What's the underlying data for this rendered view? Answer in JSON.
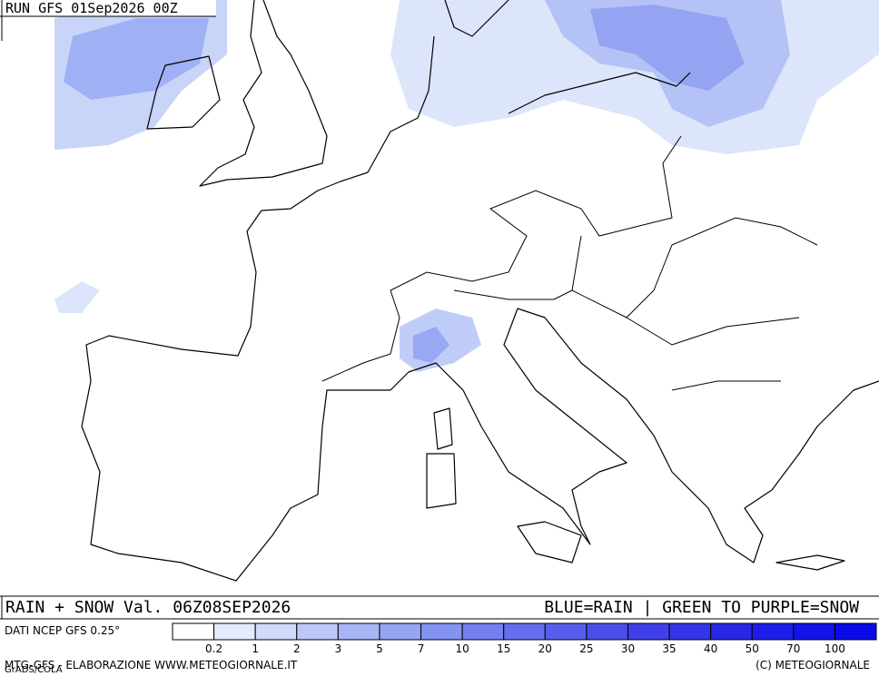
{
  "header": {
    "run": "RUN GFS 01Sep2026 00Z"
  },
  "footer": {
    "title": "RAIN + SNOW Val. 06Z08SEP2026",
    "legend_note": "BLUE=RAIN | GREEN TO PURPLE=SNOW",
    "source": "DATI NCEP GFS 0.25°",
    "credit_left": "MTG-GFS - ELABORAZIONE WWW.METEOGIORNALE.IT",
    "credit_right": "(C) METEOGIORNALE",
    "grads": "GrADS/COLA"
  },
  "colorbar": {
    "colors": [
      "#ffffff",
      "#e4ebfc",
      "#d0dafa",
      "#bcc8f8",
      "#a8b6f6",
      "#96a4f4",
      "#8492f2",
      "#7480f0",
      "#646eee",
      "#585eec",
      "#4c4eea",
      "#4040e8",
      "#3434e8",
      "#2828e6",
      "#1e1ee8",
      "#1414e8",
      "#0a0ae8"
    ],
    "labels": [
      "0.2",
      "1",
      "2",
      "3",
      "5",
      "7",
      "10",
      "15",
      "20",
      "25",
      "30",
      "35",
      "40",
      "50",
      "70",
      "100"
    ]
  }
}
